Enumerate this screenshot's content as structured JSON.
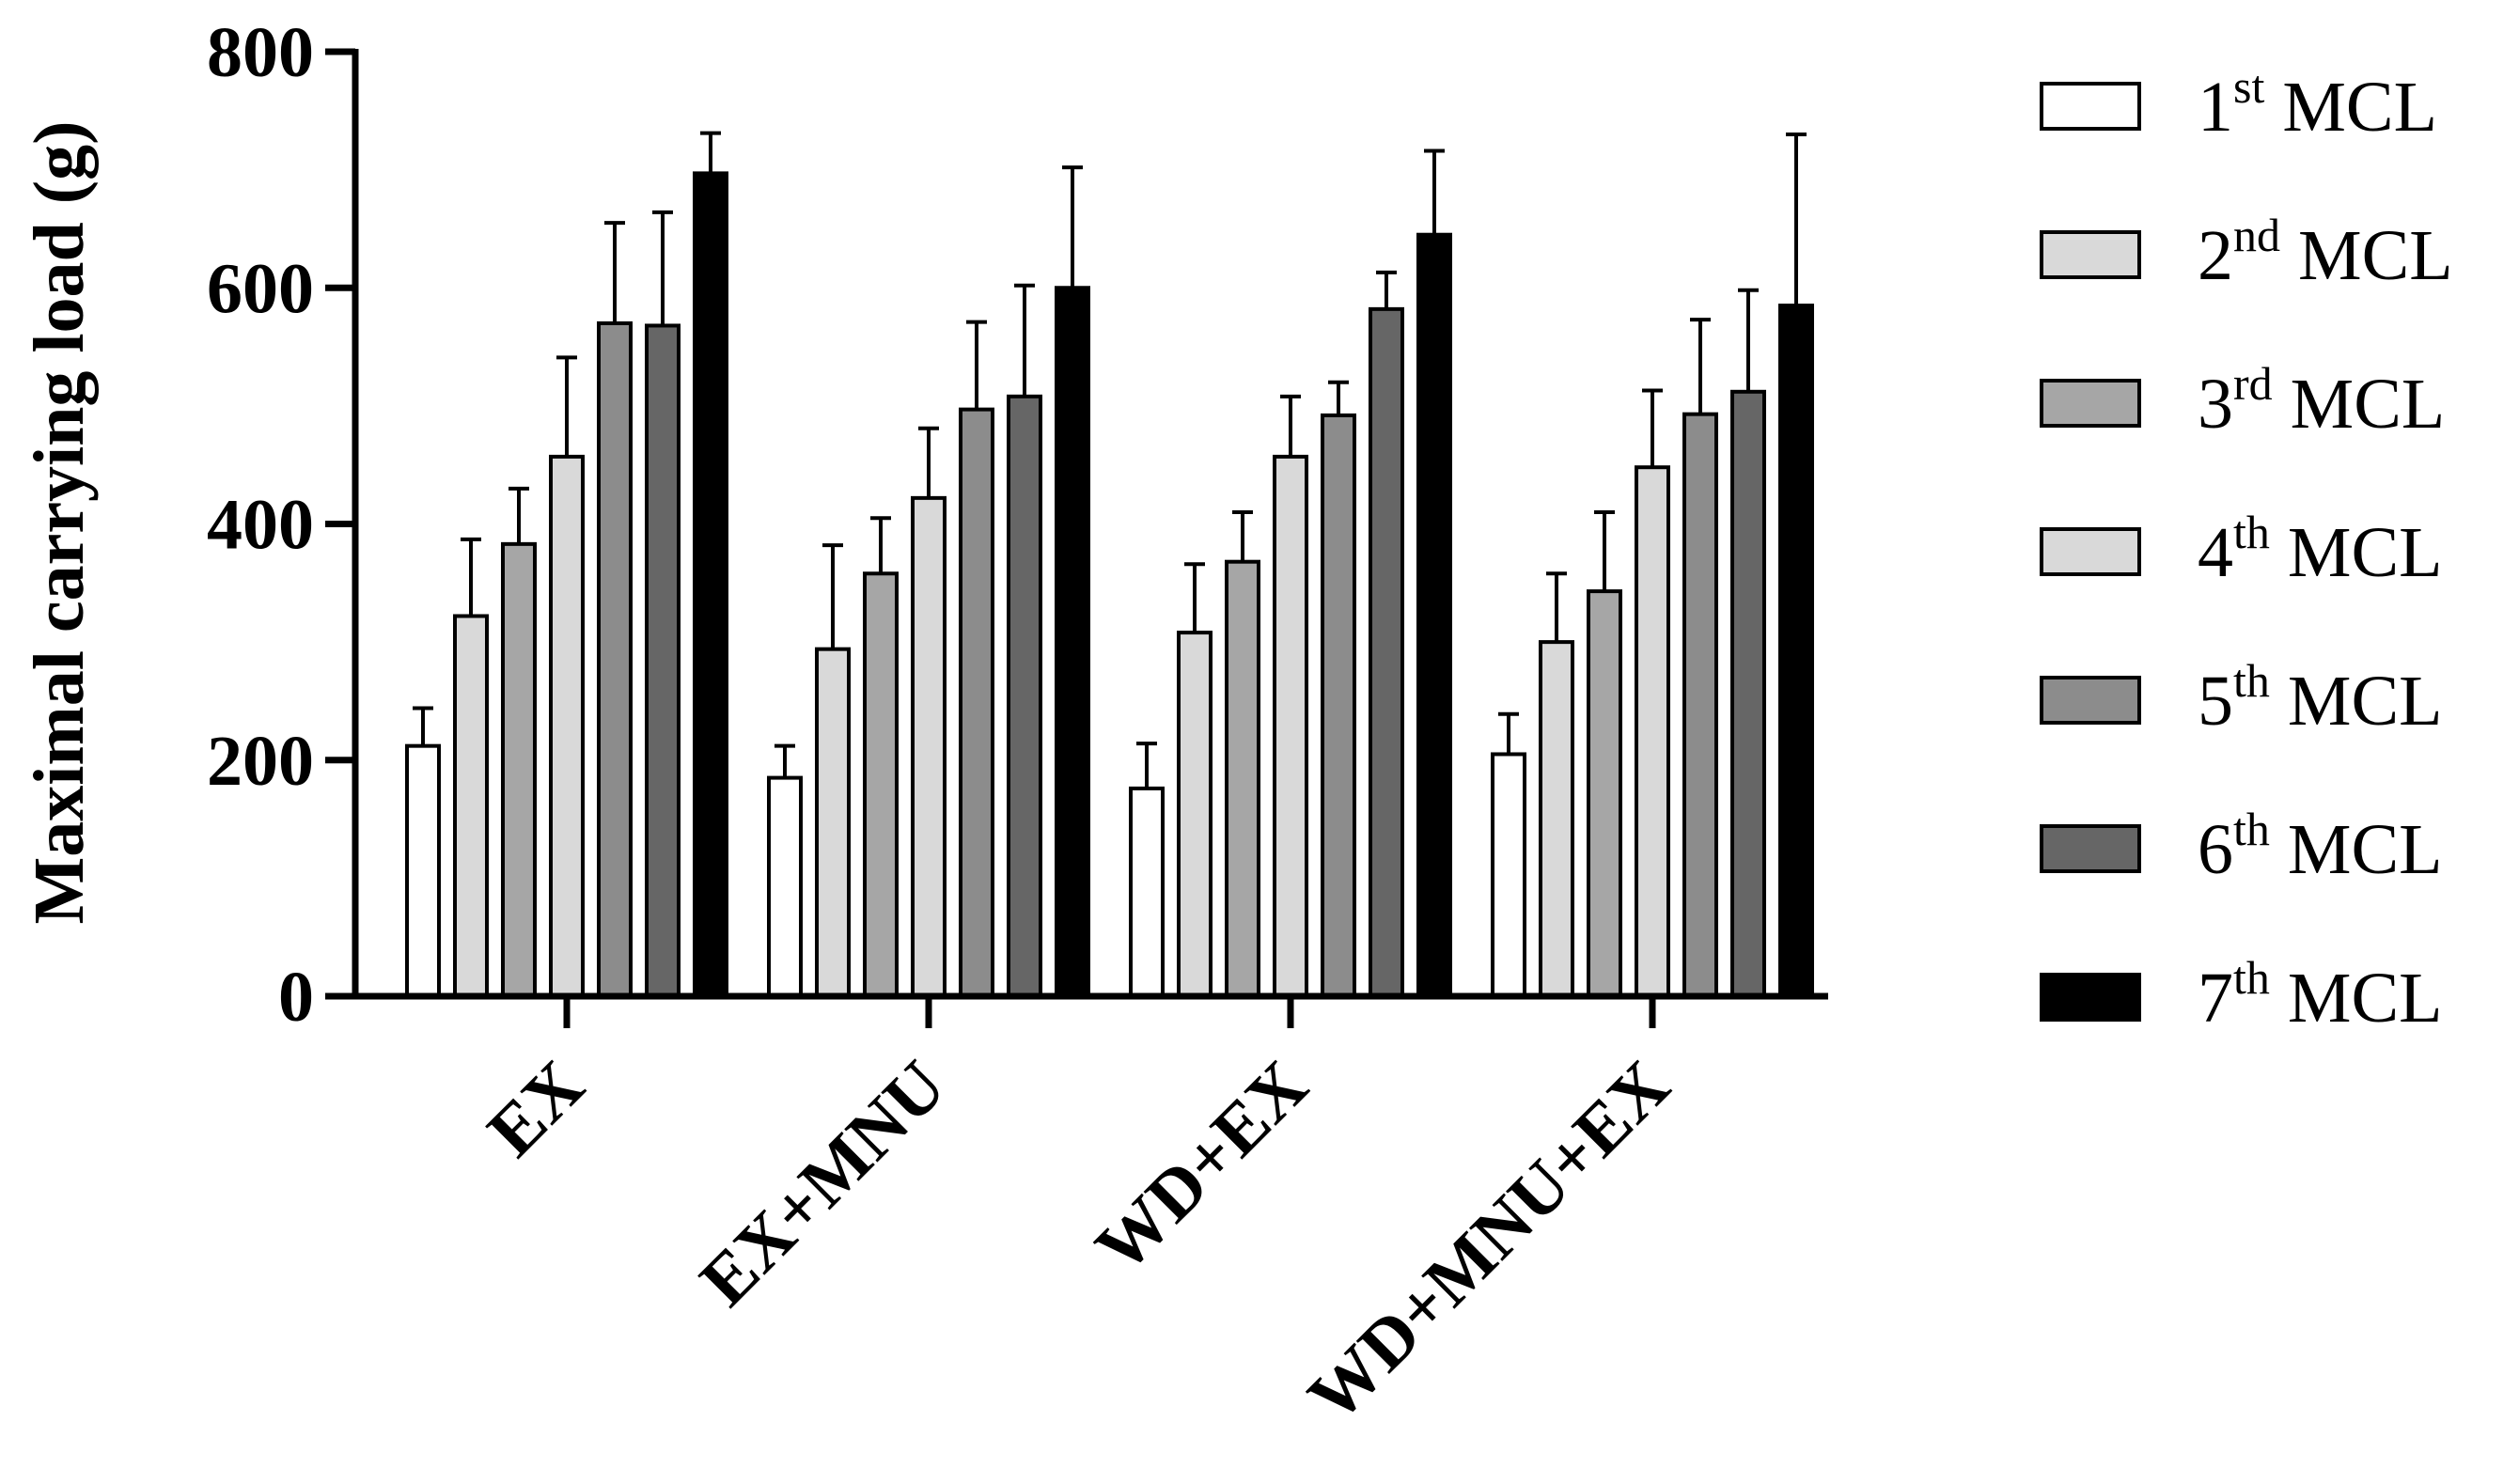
{
  "chart_data": {
    "type": "bar",
    "title": "",
    "xlabel": "",
    "ylabel": "Maximal carrying load (g)",
    "ylim": [
      0,
      800
    ],
    "yticks": [
      "0",
      "200",
      "400",
      "600",
      "800"
    ],
    "grid": false,
    "legend_position": "right",
    "categories": [
      "EX",
      "EX+MNU",
      "WD+EX",
      "WD+MNU+EX"
    ],
    "series": [
      {
        "name": "1st MCL",
        "num": "1",
        "sup": "st",
        "color": "#ffffff",
        "values": [
          212,
          185,
          176,
          205
        ],
        "errors": [
          32,
          27,
          38,
          34
        ]
      },
      {
        "name": "2nd MCL",
        "num": "2",
        "sup": "nd",
        "color": "#d9d9d9",
        "values": [
          322,
          294,
          308,
          300
        ],
        "errors": [
          65,
          88,
          58,
          58
        ]
      },
      {
        "name": "3rd MCL",
        "num": "3",
        "sup": "rd",
        "color": "#a6a6a6",
        "values": [
          383,
          358,
          368,
          343
        ],
        "errors": [
          47,
          47,
          42,
          67
        ]
      },
      {
        "name": "4th MCL",
        "num": "4",
        "sup": "th",
        "color": "#d9d9d9",
        "values": [
          457,
          422,
          457,
          448
        ],
        "errors": [
          84,
          59,
          51,
          65
        ]
      },
      {
        "name": "5th MCL",
        "num": "5",
        "sup": "th",
        "color": "#8c8c8c",
        "values": [
          570,
          497,
          492,
          493
        ],
        "errors": [
          85,
          74,
          28,
          80
        ]
      },
      {
        "name": "6th MCL",
        "num": "6",
        "sup": "th",
        "color": "#666666",
        "values": [
          568,
          508,
          582,
          512
        ],
        "errors": [
          96,
          94,
          31,
          86
        ]
      },
      {
        "name": "7th MCL",
        "num": "7",
        "sup": "th",
        "color": "#000000",
        "values": [
          697,
          600,
          645,
          585
        ],
        "errors": [
          34,
          102,
          71,
          145
        ]
      }
    ]
  }
}
